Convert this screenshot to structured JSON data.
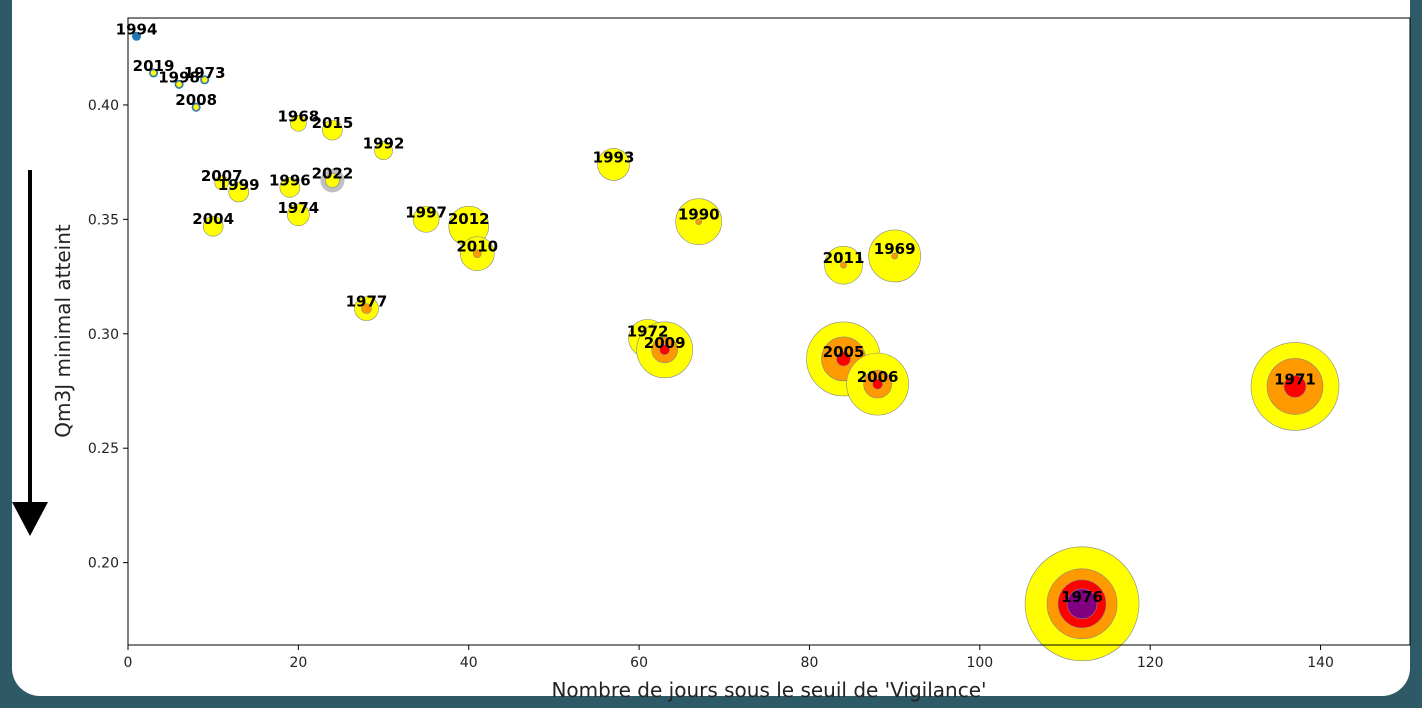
{
  "chart_data": {
    "type": "scatter",
    "xlabel": "Nombre de jours sous le seuil de 'Vigilance'",
    "ylabel": "Qm3J minimal atteint",
    "categories": [
      "1994",
      "2019",
      "1998",
      "1973",
      "2008",
      "1968",
      "2015",
      "1992",
      "1993",
      "2007",
      "1999",
      "1996",
      "2022",
      "1974",
      "2004",
      "1997",
      "2012",
      "2010",
      "1990",
      "2011",
      "1969",
      "1977",
      "1972",
      "2009",
      "2005",
      "2006",
      "1971",
      "1976"
    ],
    "x": [
      1,
      3,
      6,
      9,
      8,
      20,
      24,
      30,
      57,
      11,
      13,
      19,
      24,
      20,
      10,
      35,
      40,
      41,
      67,
      84,
      90,
      28,
      61,
      63,
      84,
      88,
      137,
      112
    ],
    "y": [
      0.43,
      0.414,
      0.409,
      0.411,
      0.399,
      0.392,
      0.389,
      0.38,
      0.374,
      0.366,
      0.362,
      0.364,
      0.367,
      0.352,
      0.347,
      0.35,
      0.347,
      0.335,
      0.349,
      0.33,
      0.334,
      0.311,
      0.298,
      0.293,
      0.289,
      0.278,
      0.277,
      0.182
    ],
    "marker_color": "#1f77b4",
    "highlight": "2022",
    "highlight_color": "#b0b0b0",
    "sizes": [
      {
        "color": "#ffff00",
        "values": [
          null,
          3,
          3,
          3,
          3,
          8,
          10,
          9,
          16,
          7,
          10,
          10,
          7,
          11,
          10,
          13,
          20,
          17,
          23,
          19,
          26,
          12,
          19,
          28,
          37,
          31,
          44,
          57
        ]
      },
      {
        "color": "#ff9900",
        "values": [
          null,
          null,
          null,
          null,
          null,
          null,
          null,
          null,
          null,
          null,
          null,
          null,
          null,
          null,
          null,
          null,
          null,
          4,
          3,
          3,
          3,
          5,
          null,
          13,
          22,
          14,
          28,
          35
        ]
      },
      {
        "color": "#ff0000",
        "values": [
          null,
          null,
          null,
          null,
          null,
          null,
          null,
          null,
          null,
          null,
          null,
          null,
          null,
          null,
          null,
          null,
          null,
          null,
          null,
          null,
          null,
          null,
          null,
          5,
          7,
          5,
          11,
          24
        ]
      },
      {
        "color": "#800080",
        "values": [
          null,
          null,
          null,
          null,
          null,
          null,
          null,
          null,
          null,
          null,
          null,
          null,
          null,
          null,
          null,
          null,
          null,
          null,
          null,
          null,
          null,
          null,
          null,
          null,
          null,
          null,
          null,
          15
        ]
      }
    ],
    "xlim": [
      0,
      150.5
    ],
    "ylim": [
      0.164,
      0.438
    ],
    "xticks": [
      0,
      20,
      40,
      60,
      80,
      100,
      120,
      140
    ],
    "yticks": [
      {
        "value": 0.2,
        "label": "0.20"
      },
      {
        "value": 0.25,
        "label": "0.25"
      },
      {
        "value": 0.3,
        "label": "0.30"
      },
      {
        "value": 0.35,
        "label": "0.35"
      },
      {
        "value": 0.4,
        "label": "0.40"
      }
    ]
  }
}
